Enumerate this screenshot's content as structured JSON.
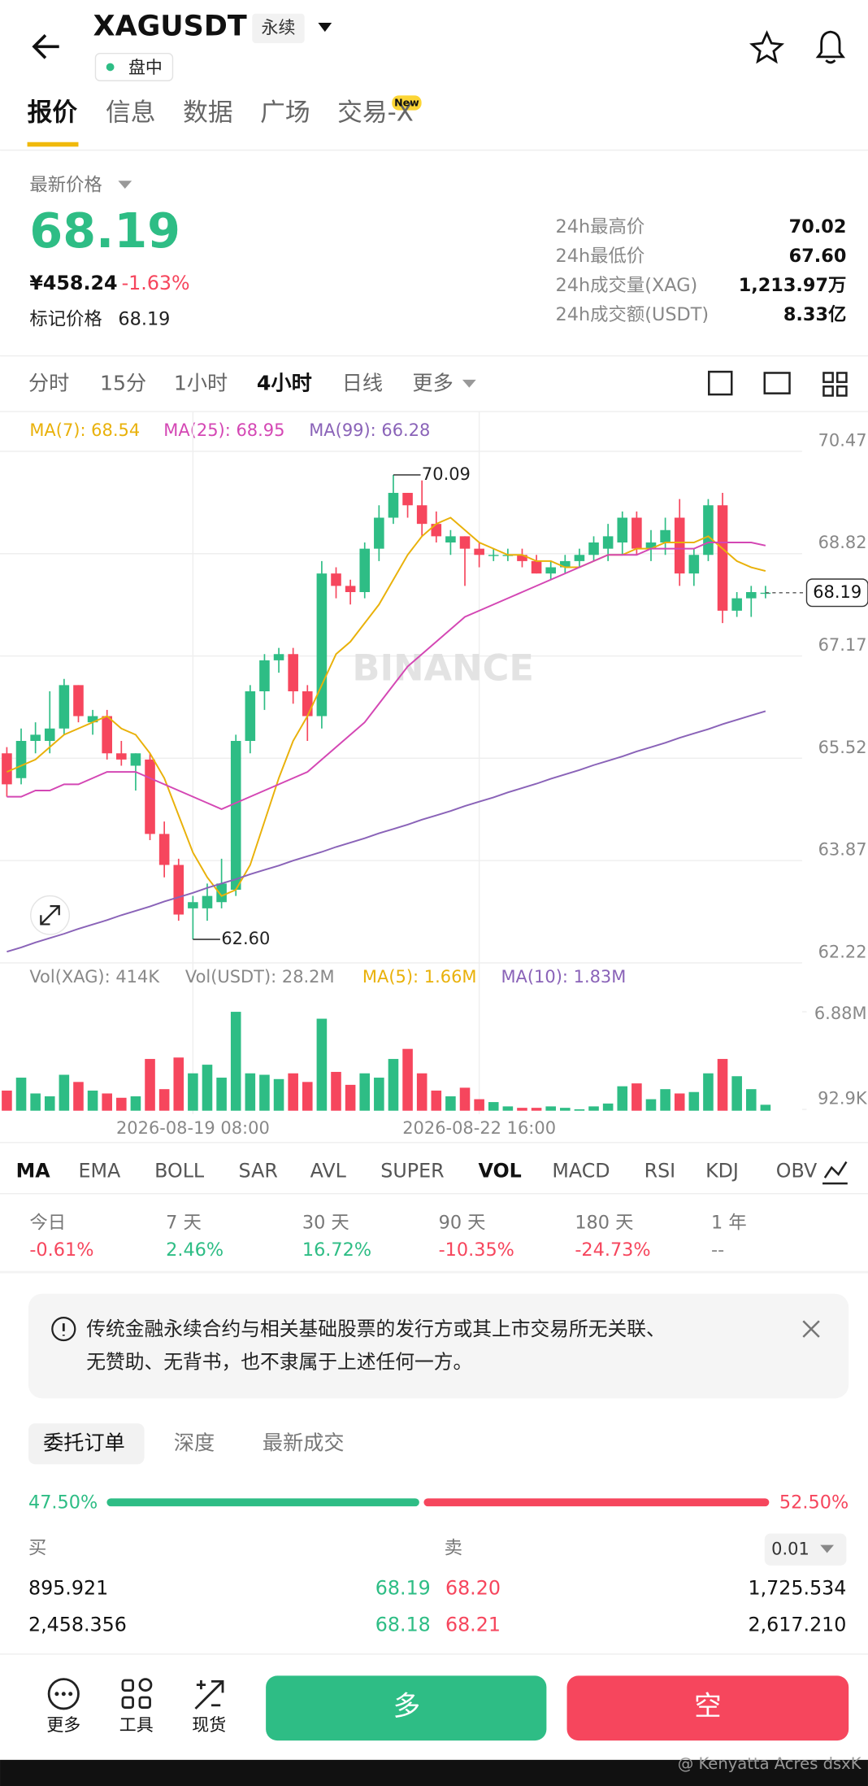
{
  "header": {
    "symbol": "XAGUSDT",
    "contract": "永续",
    "status": "盘中"
  },
  "tabs": [
    "报价",
    "信息",
    "数据",
    "广场",
    "交易-X"
  ],
  "tabs_badge": "New",
  "price": {
    "label": "最新价格",
    "last": "68.19",
    "cny": "¥458.24",
    "change": "-1.63%",
    "mark_label": "标记价格",
    "mark": "68.19"
  },
  "stats": [
    {
      "label": "24h最高价",
      "value": "70.02"
    },
    {
      "label": "24h最低价",
      "value": "67.60"
    },
    {
      "label": "24h成交量(XAG)",
      "value": "1,213.97万"
    },
    {
      "label": "24h成交额(USDT)",
      "value": "8.33亿"
    }
  ],
  "intervals": [
    "分时",
    "15分",
    "1小时",
    "4小时",
    "日线",
    "更多"
  ],
  "chart": {
    "watermark": "BINANCE",
    "ylim": [
      62.22,
      70.47
    ],
    "yticks": [
      62.22,
      63.87,
      65.52,
      67.17,
      68.82,
      70.47
    ],
    "up_color": "#2ebd85",
    "down_color": "#f6465d",
    "last_price": 68.19,
    "high_mark": 70.09,
    "low_mark": {
      "value": 62.6,
      "label": "62.60"
    },
    "times": [
      null,
      null,
      null,
      null,
      null,
      null,
      null,
      null,
      null,
      null,
      null,
      null,
      null,
      "2026-08-19 08:00",
      null,
      null,
      null,
      null,
      null,
      null,
      null,
      null,
      null,
      null,
      null,
      null,
      null,
      null,
      null,
      null,
      null,
      null,
      null,
      "2026-08-22 16:00",
      null,
      null,
      null,
      null,
      null,
      null,
      null,
      null,
      null,
      null,
      null,
      null,
      null,
      null,
      null,
      null,
      null,
      null,
      null,
      null
    ],
    "open": [
      65.6,
      65.2,
      65.8,
      65.8,
      66.0,
      66.7,
      66.1,
      66.2,
      65.6,
      65.4,
      65.5,
      64.3,
      63.8,
      63.1,
      63.1,
      63.2,
      63.4,
      65.8,
      66.6,
      67.1,
      67.2,
      66.6,
      66.2,
      68.5,
      68.3,
      68.2,
      68.9,
      69.4,
      69.8,
      69.6,
      69.3,
      69.0,
      69.1,
      68.9,
      68.8,
      68.8,
      68.8,
      68.7,
      68.5,
      68.6,
      68.7,
      68.8,
      68.9,
      69.0,
      69.4,
      68.9,
      69.0,
      69.4,
      68.5,
      68.8,
      69.6,
      67.9,
      68.1,
      68.19
    ],
    "high": [
      65.7,
      66.0,
      66.1,
      66.6,
      66.8,
      66.7,
      66.3,
      66.3,
      65.8,
      65.6,
      65.6,
      64.5,
      63.9,
      63.3,
      63.5,
      63.9,
      65.9,
      66.7,
      67.2,
      67.3,
      67.3,
      66.7,
      68.7,
      68.6,
      68.4,
      69.0,
      69.6,
      70.09,
      69.8,
      70.0,
      69.5,
      69.2,
      69.1,
      69.0,
      68.9,
      68.9,
      68.9,
      68.8,
      68.7,
      68.8,
      68.9,
      69.1,
      69.3,
      69.5,
      69.5,
      69.2,
      69.4,
      69.7,
      68.9,
      69.7,
      69.8,
      68.2,
      68.3,
      68.3
    ],
    "low": [
      64.9,
      65.1,
      65.6,
      65.6,
      65.9,
      66.1,
      65.9,
      65.5,
      65.4,
      65.0,
      64.2,
      63.6,
      62.9,
      62.6,
      62.9,
      63.1,
      63.3,
      65.6,
      66.3,
      66.9,
      66.4,
      65.8,
      66.0,
      68.1,
      68.0,
      68.1,
      68.7,
      69.3,
      69.4,
      69.1,
      69.0,
      68.8,
      68.3,
      68.6,
      68.7,
      68.7,
      68.6,
      68.5,
      68.4,
      68.5,
      68.6,
      68.7,
      68.7,
      68.8,
      68.8,
      68.7,
      68.8,
      68.3,
      68.3,
      68.7,
      67.7,
      67.8,
      67.8,
      68.1
    ],
    "close": [
      65.1,
      65.8,
      65.9,
      66.0,
      66.7,
      66.2,
      66.2,
      65.6,
      65.5,
      65.6,
      64.3,
      63.8,
      63.0,
      63.2,
      63.3,
      63.5,
      65.8,
      66.6,
      67.1,
      67.2,
      66.6,
      66.2,
      68.5,
      68.3,
      68.2,
      68.9,
      69.4,
      69.8,
      69.6,
      69.3,
      69.1,
      69.1,
      68.9,
      68.8,
      68.8,
      68.8,
      68.7,
      68.5,
      68.6,
      68.7,
      68.8,
      69.0,
      69.1,
      69.4,
      68.9,
      69.0,
      69.2,
      68.5,
      68.8,
      69.6,
      67.9,
      68.1,
      68.2,
      68.19
    ],
    "ma_lines": [
      {
        "legend": "MA(7): 68.54",
        "color": "#e9b10a",
        "values": [
          65.3,
          65.4,
          65.5,
          65.7,
          65.9,
          66.0,
          66.1,
          66.2,
          66.0,
          65.9,
          65.6,
          65.2,
          64.6,
          64.0,
          63.6,
          63.3,
          63.4,
          63.8,
          64.5,
          65.2,
          65.8,
          66.2,
          66.7,
          67.2,
          67.4,
          67.7,
          68.0,
          68.4,
          68.8,
          69.1,
          69.3,
          69.4,
          69.2,
          69.0,
          68.9,
          68.8,
          68.8,
          68.7,
          68.7,
          68.6,
          68.6,
          68.7,
          68.8,
          68.8,
          68.9,
          68.9,
          69.0,
          69.0,
          69.0,
          69.1,
          68.9,
          68.7,
          68.6,
          68.54
        ]
      },
      {
        "legend": "MA(25): 68.95",
        "color": "#d447b4",
        "values": [
          64.9,
          64.9,
          65.0,
          65.0,
          65.1,
          65.1,
          65.2,
          65.3,
          65.3,
          65.3,
          65.2,
          65.1,
          65.0,
          64.9,
          64.8,
          64.7,
          64.8,
          64.9,
          65.0,
          65.1,
          65.2,
          65.3,
          65.5,
          65.7,
          65.9,
          66.1,
          66.4,
          66.7,
          67.0,
          67.2,
          67.4,
          67.6,
          67.8,
          67.9,
          68.0,
          68.1,
          68.2,
          68.3,
          68.4,
          68.5,
          68.6,
          68.7,
          68.8,
          68.8,
          68.8,
          68.9,
          68.9,
          68.9,
          68.9,
          69.0,
          69.0,
          69.0,
          69.0,
          68.95
        ]
      },
      {
        "legend": "MA(99): 66.28",
        "color": "#8a63b8",
        "values": [
          62.4,
          62.47,
          62.55,
          62.62,
          62.69,
          62.77,
          62.84,
          62.91,
          62.99,
          63.06,
          63.13,
          63.21,
          63.28,
          63.35,
          63.43,
          63.5,
          63.57,
          63.65,
          63.72,
          63.79,
          63.87,
          63.94,
          64.01,
          64.09,
          64.16,
          64.23,
          64.31,
          64.38,
          64.45,
          64.53,
          64.6,
          64.67,
          64.75,
          64.82,
          64.89,
          64.97,
          65.04,
          65.11,
          65.19,
          65.26,
          65.33,
          65.41,
          65.48,
          65.55,
          65.63,
          65.7,
          65.77,
          65.85,
          65.92,
          65.99,
          66.07,
          66.14,
          66.21,
          66.28
        ]
      }
    ]
  },
  "volume": {
    "legends": [
      {
        "text": "Vol(XAG): 414K",
        "color": "#888888"
      },
      {
        "text": "Vol(USDT): 28.2M",
        "color": "#888888"
      },
      {
        "text": "MA(5): 1.66M",
        "color": "#e9b10a"
      },
      {
        "text": "MA(10): 1.83M",
        "color": "#8a63b8"
      }
    ],
    "ylim": [
      0,
      6880000
    ],
    "yticks": [
      {
        "value": 6880000,
        "label": "6.88M"
      },
      {
        "value": 92900,
        "label": "92.9K"
      }
    ],
    "values": [
      1400000,
      2300000,
      1200000,
      1000000,
      2500000,
      2000000,
      1400000,
      1200000,
      900000,
      1000000,
      3600000,
      1500000,
      3700000,
      2600000,
      3200000,
      2300000,
      6880000,
      2600000,
      2500000,
      2200000,
      2600000,
      2000000,
      6400000,
      2700000,
      1800000,
      2600000,
      2300000,
      3600000,
      4300000,
      2600000,
      1400000,
      1000000,
      1600000,
      800000,
      600000,
      300000,
      200000,
      200000,
      300000,
      200000,
      100000,
      300000,
      500000,
      1700000,
      1900000,
      800000,
      1500000,
      1200000,
      1300000,
      2600000,
      3600000,
      2400000,
      1500000,
      414000
    ]
  },
  "indicators": [
    "MA",
    "EMA",
    "BOLL",
    "SAR",
    "AVL",
    "SUPER",
    "VOL",
    "MACD",
    "RSI",
    "KDJ",
    "OBV"
  ],
  "performance": [
    {
      "label": "今日",
      "value": "-0.61%"
    },
    {
      "label": "7 天",
      "value": "2.46%"
    },
    {
      "label": "30 天",
      "value": "16.72%"
    },
    {
      "label": "90 天",
      "value": "-10.35%"
    },
    {
      "label": "180 天",
      "value": "-24.73%"
    },
    {
      "label": "1 年",
      "value": "--"
    }
  ],
  "notice": [
    "传统金融永续合约与相关基础股票的发行方或其上市交易所无关联、",
    "无赞助、无背书，也不隶属于上述任何一方。"
  ],
  "order_tabs": [
    "委托订单",
    "深度",
    "最新成交"
  ],
  "ratio": {
    "values": [
      47.5,
      52.5
    ],
    "value_labels": [
      "47.50%",
      "52.50%"
    ]
  },
  "book": {
    "buy_label": "买",
    "sell_label": "卖",
    "precision": "0.01",
    "rows": [
      [
        "895.921",
        "68.19",
        "68.20",
        "1,725.534"
      ],
      [
        "2,458.356",
        "68.18",
        "68.21",
        "2,617.210"
      ]
    ]
  },
  "bottom": {
    "tools": [
      "更多",
      "工具",
      "现货"
    ],
    "long": "多",
    "short": "空"
  },
  "watermark": "@ Kenyatta Acres dsxK"
}
